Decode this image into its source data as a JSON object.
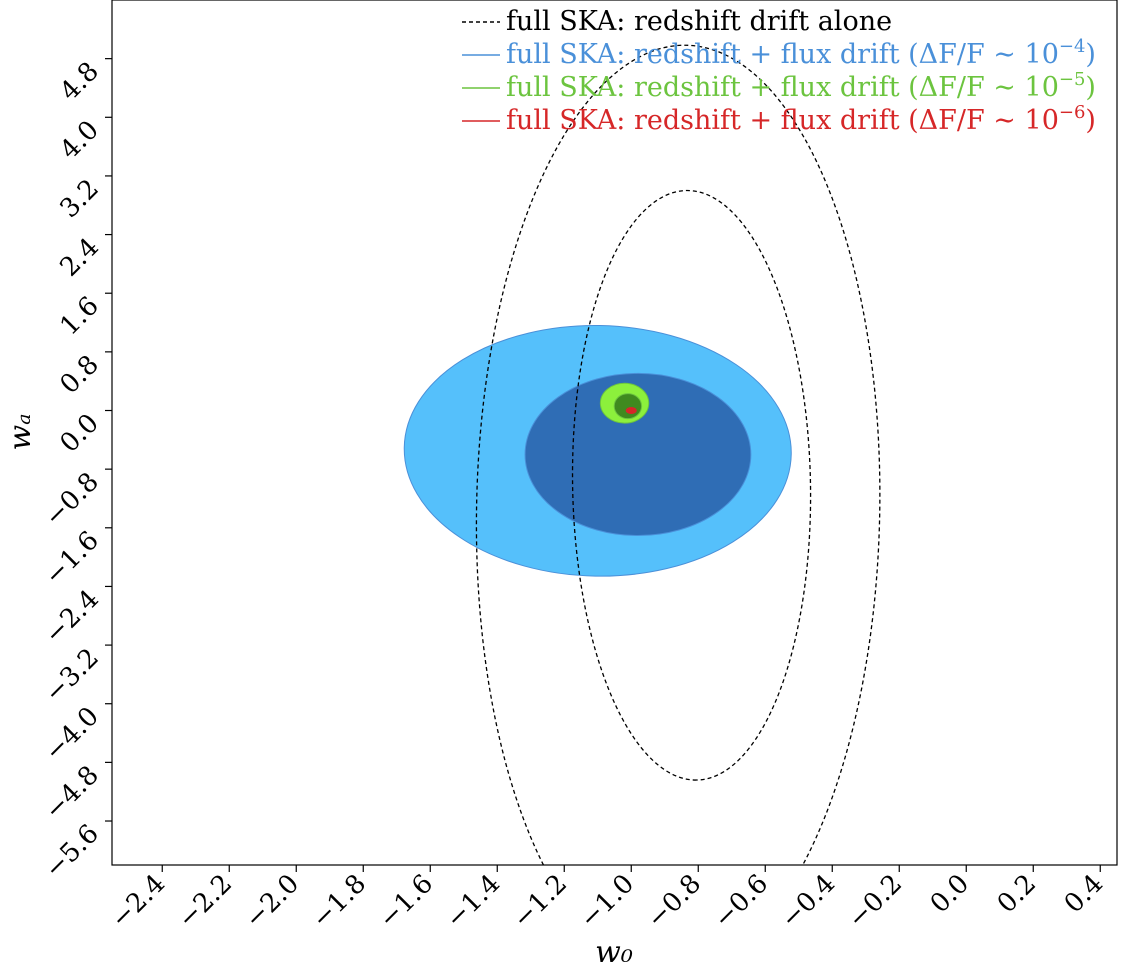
{
  "chart_data": {
    "type": "contour",
    "xlabel": "w₀",
    "ylabel": "wₐ",
    "xlim": [
      -2.55,
      4.5
    ],
    "ylim": [
      -6.2,
      5.6
    ],
    "xlim_visible": [
      -2.55,
      0.45
    ],
    "xticks": [
      -2.4,
      -2.2,
      -2.0,
      -1.8,
      -1.6,
      -1.4,
      -1.2,
      -1.0,
      -0.8,
      -0.6,
      -0.4,
      -0.2,
      0.0,
      0.2,
      0.4
    ],
    "xtick_labels": [
      "−2.4",
      "−2.2",
      "−2.0",
      "−1.8",
      "−1.6",
      "−1.4",
      "−1.2",
      "−1.0",
      "−0.8",
      "−0.6",
      "−0.4",
      "−0.2",
      "0.0",
      "0.2",
      "0.4"
    ],
    "yticks": [
      -5.6,
      -4.8,
      -4.0,
      -3.2,
      -2.4,
      -1.6,
      -0.8,
      0.0,
      0.8,
      1.6,
      2.4,
      3.2,
      4.0,
      4.8
    ],
    "ytick_labels": [
      "−5.6",
      "−4.8",
      "−4.0",
      "−3.2",
      "−2.4",
      "−1.6",
      "−0.8",
      "0.0",
      "0.8",
      "1.6",
      "2.4",
      "3.2",
      "4.0",
      "4.8"
    ],
    "grid": false,
    "legend_placement": "top-right",
    "fiducial": {
      "w0": -1.0,
      "wa": 0.0
    },
    "series": [
      {
        "name": "full SKA: redshift drift alone",
        "label_html": "full SKA: redshift drift alone",
        "style": "dashed",
        "color": "#000000",
        "contours": [
          {
            "level": "1-sigma",
            "center": [
              -0.82,
              -1.02
            ],
            "rx": 0.4,
            "ry": 2.95,
            "theta_deg": -45,
            "fill": "none"
          },
          {
            "level": "2-sigma",
            "center": [
              -0.86,
              -1.35
            ],
            "rx": 0.63,
            "ry": 5.0,
            "theta_deg": -47,
            "fill": "none"
          }
        ]
      },
      {
        "name": "full SKA: redshift + flux drift (ΔF/F ~ 10⁻⁴)",
        "style": "solid",
        "color": "#4a90d9",
        "contours": [
          {
            "level": "1-sigma",
            "center": [
              -0.98,
              -0.6
            ],
            "rx": 0.11,
            "ry": 2.8,
            "theta_deg": -46,
            "fill": "#2f6db5"
          },
          {
            "level": "2-sigma",
            "center": [
              -1.1,
              -0.55
            ],
            "rx": 0.17,
            "ry": 4.8,
            "theta_deg": -47,
            "fill": "#55c0fb"
          }
        ]
      },
      {
        "name": "full SKA: redshift + flux drift (ΔF/F ~ 10⁻⁵)",
        "style": "solid",
        "color": "#6cc43f",
        "contours": [
          {
            "level": "1-sigma",
            "center": [
              -1.01,
              0.06
            ],
            "rx": 0.017,
            "ry": 0.34,
            "theta_deg": -46,
            "fill": "#3f8a1f"
          },
          {
            "level": "2-sigma",
            "center": [
              -1.02,
              0.1
            ],
            "rx": 0.027,
            "ry": 0.6,
            "theta_deg": -46,
            "fill": "#8cf03c"
          }
        ]
      },
      {
        "name": "full SKA: redshift + flux drift (ΔF/F ~ 10⁻⁶)",
        "style": "solid",
        "color": "#d62728",
        "contours": [
          {
            "level": "1-sigma",
            "center": [
              -1.0,
              0.0
            ],
            "rx": 0.003,
            "ry": 0.045,
            "theta_deg": -46,
            "fill": "#d62728"
          }
        ]
      }
    ],
    "legend": [
      {
        "text": "full SKA: redshift drift alone",
        "color": "#000000",
        "style": "dashed"
      },
      {
        "text": "full SKA: redshift + flux drift (ΔF/F ∼ 10",
        "sup": "−4",
        "tail": ")",
        "color": "#4a90d9",
        "style": "solid"
      },
      {
        "text": "full SKA: redshift + flux drift (ΔF/F ∼ 10",
        "sup": "−5",
        "tail": ")",
        "color": "#6cc43f",
        "style": "solid"
      },
      {
        "text": "full SKA: redshift + flux drift (ΔF/F ∼ 10",
        "sup": "−6",
        "tail": ")",
        "color": "#d62728",
        "style": "solid"
      }
    ]
  }
}
